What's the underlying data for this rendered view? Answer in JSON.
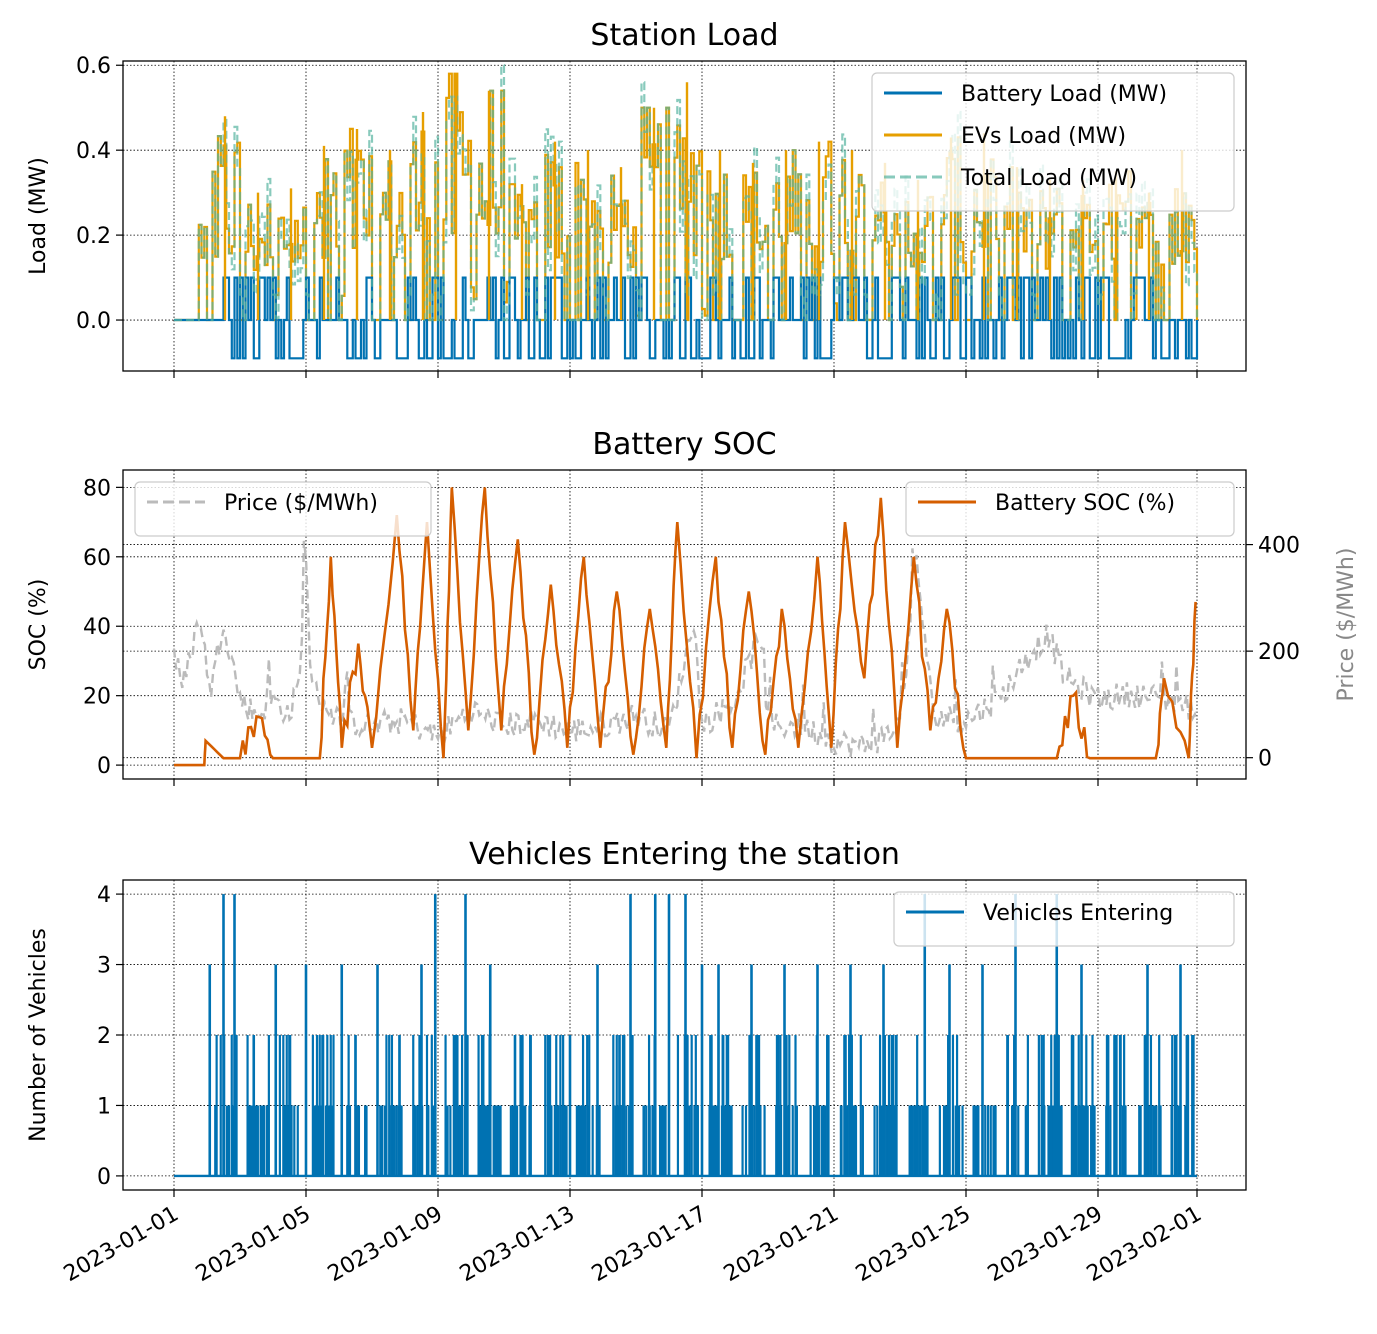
{
  "chart_data": [
    {
      "type": "line",
      "title": "Station Load",
      "ylabel": "Load (MW)",
      "ylim": [
        -0.12,
        0.61
      ],
      "yticks": [
        "0.0",
        "0.2",
        "0.4",
        "0.6"
      ],
      "grid": true,
      "legend": "top-right",
      "series": [
        {
          "name": "Battery Load (MW)",
          "color": "#0072B2",
          "style": "solid",
          "pattern": {
            "levels": [
              -0.09,
              0.0,
              0.1
            ],
            "sample_every_hours": 2
          }
        },
        {
          "name": "EVs Load (MW)",
          "color": "#E69F00",
          "style": "solid",
          "peaks": [
            {
              "x": "2023-01-02",
              "y": 0.48
            },
            {
              "x": "2023-01-03",
              "y": 0.3
            },
            {
              "x": "2023-01-04",
              "y": 0.31
            },
            {
              "x": "2023-01-05",
              "y": 0.41
            },
            {
              "x": "2023-01-06",
              "y": 0.45
            },
            {
              "x": "2023-01-07",
              "y": 0.4
            },
            {
              "x": "2023-01-08",
              "y": 0.49
            },
            {
              "x": "2023-01-09",
              "y": 0.58
            },
            {
              "x": "2023-01-10",
              "y": 0.54
            },
            {
              "x": "2023-01-11",
              "y": 0.32
            },
            {
              "x": "2023-01-12",
              "y": 0.42
            },
            {
              "x": "2023-01-13",
              "y": 0.4
            },
            {
              "x": "2023-01-14",
              "y": 0.36
            },
            {
              "x": "2023-01-15",
              "y": 0.5
            },
            {
              "x": "2023-01-16",
              "y": 0.56
            },
            {
              "x": "2023-01-17",
              "y": 0.4
            },
            {
              "x": "2023-01-18",
              "y": 0.37
            },
            {
              "x": "2023-01-19",
              "y": 0.4
            },
            {
              "x": "2023-01-20",
              "y": 0.42
            },
            {
              "x": "2023-01-21",
              "y": 0.4
            },
            {
              "x": "2023-01-22",
              "y": 0.37
            },
            {
              "x": "2023-01-23",
              "y": 0.33
            },
            {
              "x": "2023-01-24",
              "y": 0.43
            },
            {
              "x": "2023-01-25",
              "y": 0.44
            },
            {
              "x": "2023-01-26",
              "y": 0.36
            },
            {
              "x": "2023-01-27",
              "y": 0.33
            },
            {
              "x": "2023-01-28",
              "y": 0.33
            },
            {
              "x": "2023-01-29",
              "y": 0.35
            },
            {
              "x": "2023-01-30",
              "y": 0.3
            },
            {
              "x": "2023-01-31",
              "y": 0.4
            }
          ]
        },
        {
          "name": "Total Load (MW)",
          "color": "#56B4A0",
          "style": "dashed",
          "opacity": 0.7
        }
      ]
    },
    {
      "type": "line",
      "title": "Battery SOC",
      "ylabel": "SOC (%)",
      "ylim": [
        -4,
        85
      ],
      "yticks": [
        "0",
        "20",
        "40",
        "60",
        "80"
      ],
      "y2label": "Price ($/MWh)",
      "y2ticks": [
        "0",
        "200",
        "400"
      ],
      "y2lim": [
        -40,
        540
      ],
      "grid": true,
      "series": [
        {
          "name": "Price ($/MWh)",
          "axis": "right",
          "color": "#bbbbbb",
          "style": "dashed",
          "legend": "top-left",
          "points": [
            {
              "x": "2023-01-01T00:00",
              "y": 200
            },
            {
              "x": "2023-01-01T06:00",
              "y": 130
            },
            {
              "x": "2023-01-01T18:00",
              "y": 260
            },
            {
              "x": "2023-01-02T03:00",
              "y": 130
            },
            {
              "x": "2023-01-02T12:00",
              "y": 260
            },
            {
              "x": "2023-01-03T00:00",
              "y": 110
            },
            {
              "x": "2023-01-03T12:00",
              "y": 80
            },
            {
              "x": "2023-01-04T00:00",
              "y": 110
            },
            {
              "x": "2023-01-04T12:00",
              "y": 80
            },
            {
              "x": "2023-01-04T20:00",
              "y": 150
            },
            {
              "x": "2023-01-04T23:00",
              "y": 440
            },
            {
              "x": "2023-01-05T04:00",
              "y": 130
            },
            {
              "x": "2023-01-06T00:00",
              "y": 70
            },
            {
              "x": "2023-01-07T00:00",
              "y": 60
            },
            {
              "x": "2023-01-08T00:00",
              "y": 70
            },
            {
              "x": "2023-01-09T00:00",
              "y": 40
            },
            {
              "x": "2023-01-10T00:00",
              "y": 90
            },
            {
              "x": "2023-01-11T00:00",
              "y": 60
            },
            {
              "x": "2023-01-12T00:00",
              "y": 70
            },
            {
              "x": "2023-01-13T00:00",
              "y": 50
            },
            {
              "x": "2023-01-14T00:00",
              "y": 60
            },
            {
              "x": "2023-01-15T00:00",
              "y": 80
            },
            {
              "x": "2023-01-16T00:00",
              "y": 50
            },
            {
              "x": "2023-01-16T18:00",
              "y": 260
            },
            {
              "x": "2023-01-17T00:00",
              "y": 60
            },
            {
              "x": "2023-01-18T00:00",
              "y": 110
            },
            {
              "x": "2023-01-18T18:00",
              "y": 230
            },
            {
              "x": "2023-01-19T00:00",
              "y": 60
            },
            {
              "x": "2023-01-20T00:00",
              "y": 60
            },
            {
              "x": "2023-01-21T00:00",
              "y": 30
            },
            {
              "x": "2023-01-22T00:00",
              "y": 20
            },
            {
              "x": "2023-01-23T00:00",
              "y": 60
            },
            {
              "x": "2023-01-23T12:00",
              "y": 370
            },
            {
              "x": "2023-01-24T00:00",
              "y": 80
            },
            {
              "x": "2023-01-25T00:00",
              "y": 70
            },
            {
              "x": "2023-01-26T00:00",
              "y": 110
            },
            {
              "x": "2023-01-27T00:00",
              "y": 200
            },
            {
              "x": "2023-01-27T12:00",
              "y": 230
            },
            {
              "x": "2023-01-28T00:00",
              "y": 150
            },
            {
              "x": "2023-01-29T00:00",
              "y": 110
            },
            {
              "x": "2023-01-30T00:00",
              "y": 120
            },
            {
              "x": "2023-01-31T00:00",
              "y": 110
            },
            {
              "x": "2023-02-01T00:00",
              "y": 90
            }
          ]
        },
        {
          "name": "Battery SOC (%)",
          "axis": "left",
          "color": "#D55E00",
          "style": "solid",
          "legend": "top-right",
          "points": [
            {
              "x": "2023-01-01T00:00",
              "y": 0
            },
            {
              "x": "2023-01-01T22:00",
              "y": 0
            },
            {
              "x": "2023-01-01T23:00",
              "y": 7
            },
            {
              "x": "2023-01-02T12:00",
              "y": 2
            },
            {
              "x": "2023-01-03T00:00",
              "y": 2
            },
            {
              "x": "2023-01-03T12:00",
              "y": 14
            },
            {
              "x": "2023-01-04T00:00",
              "y": 2
            },
            {
              "x": "2023-01-04T12:00",
              "y": 2
            },
            {
              "x": "2023-01-05T00:00",
              "y": 2
            },
            {
              "x": "2023-01-05T10:00",
              "y": 2
            },
            {
              "x": "2023-01-05T18:00",
              "y": 60
            },
            {
              "x": "2023-01-06T02:00",
              "y": 5
            },
            {
              "x": "2023-01-06T14:00",
              "y": 35
            },
            {
              "x": "2023-01-07T00:00",
              "y": 5
            },
            {
              "x": "2023-01-07T18:00",
              "y": 72
            },
            {
              "x": "2023-01-08T06:00",
              "y": 10
            },
            {
              "x": "2023-01-08T16:00",
              "y": 70
            },
            {
              "x": "2023-01-09T04:00",
              "y": 2
            },
            {
              "x": "2023-01-09T10:00",
              "y": 80
            },
            {
              "x": "2023-01-09T22:00",
              "y": 10
            },
            {
              "x": "2023-01-10T10:00",
              "y": 80
            },
            {
              "x": "2023-01-10T22:00",
              "y": 10
            },
            {
              "x": "2023-01-11T10:00",
              "y": 65
            },
            {
              "x": "2023-01-11T22:00",
              "y": 3
            },
            {
              "x": "2023-01-12T10:00",
              "y": 52
            },
            {
              "x": "2023-01-12T22:00",
              "y": 5
            },
            {
              "x": "2023-01-13T10:00",
              "y": 60
            },
            {
              "x": "2023-01-13T22:00",
              "y": 5
            },
            {
              "x": "2023-01-14T10:00",
              "y": 50
            },
            {
              "x": "2023-01-14T22:00",
              "y": 3
            },
            {
              "x": "2023-01-15T10:00",
              "y": 45
            },
            {
              "x": "2023-01-15T22:00",
              "y": 5
            },
            {
              "x": "2023-01-16T06:00",
              "y": 70
            },
            {
              "x": "2023-01-16T20:00",
              "y": 2
            },
            {
              "x": "2023-01-17T10:00",
              "y": 60
            },
            {
              "x": "2023-01-17T22:00",
              "y": 5
            },
            {
              "x": "2023-01-18T10:00",
              "y": 50
            },
            {
              "x": "2023-01-18T22:00",
              "y": 3
            },
            {
              "x": "2023-01-19T10:00",
              "y": 45
            },
            {
              "x": "2023-01-19T22:00",
              "y": 5
            },
            {
              "x": "2023-01-20T12:00",
              "y": 60
            },
            {
              "x": "2023-01-20T22:00",
              "y": 5
            },
            {
              "x": "2023-01-21T08:00",
              "y": 70
            },
            {
              "x": "2023-01-21T22:00",
              "y": 25
            },
            {
              "x": "2023-01-22T10:00",
              "y": 77
            },
            {
              "x": "2023-01-22T22:00",
              "y": 5
            },
            {
              "x": "2023-01-23T10:00",
              "y": 60
            },
            {
              "x": "2023-01-23T22:00",
              "y": 10
            },
            {
              "x": "2023-01-24T10:00",
              "y": 45
            },
            {
              "x": "2023-01-24T22:00",
              "y": 5
            },
            {
              "x": "2023-01-25T00:00",
              "y": 2
            },
            {
              "x": "2023-01-27T18:00",
              "y": 2
            },
            {
              "x": "2023-01-28T06:00",
              "y": 20
            },
            {
              "x": "2023-01-28T18:00",
              "y": 2
            },
            {
              "x": "2023-01-30T18:00",
              "y": 2
            },
            {
              "x": "2023-01-31T00:00",
              "y": 25
            },
            {
              "x": "2023-01-31T18:00",
              "y": 2
            },
            {
              "x": "2023-01-31T23:00",
              "y": 47
            }
          ]
        }
      ]
    },
    {
      "type": "line",
      "title": "Vehicles Entering the station",
      "ylabel": "Number of Vehicles",
      "ylim": [
        -0.2,
        4.2
      ],
      "yticks": [
        "0",
        "1",
        "2",
        "3",
        "4"
      ],
      "grid": true,
      "legend": "top-right",
      "series": [
        {
          "name": "Vehicles Entering",
          "color": "#0072B2",
          "style": "solid",
          "spikes": [
            {
              "x": "2023-01-02T02:00",
              "y": 3
            },
            {
              "x": "2023-01-02T12:00",
              "y": 4
            },
            {
              "x": "2023-01-02T20:00",
              "y": 4
            },
            {
              "x": "2023-01-03T10:00",
              "y": 2
            },
            {
              "x": "2023-01-04T02:00",
              "y": 3
            },
            {
              "x": "2023-01-04T12:00",
              "y": 2
            },
            {
              "x": "2023-01-05T00:00",
              "y": 3
            },
            {
              "x": "2023-01-05T12:00",
              "y": 2
            },
            {
              "x": "2023-01-06T02:00",
              "y": 3
            },
            {
              "x": "2023-01-06T12:00",
              "y": 2
            },
            {
              "x": "2023-01-07T04:00",
              "y": 3
            },
            {
              "x": "2023-01-07T20:00",
              "y": 2
            },
            {
              "x": "2023-01-08T12:00",
              "y": 3
            },
            {
              "x": "2023-01-08T22:00",
              "y": 4
            },
            {
              "x": "2023-01-09T14:00",
              "y": 2
            },
            {
              "x": "2023-01-09T20:00",
              "y": 4
            },
            {
              "x": "2023-01-10T14:00",
              "y": 3
            },
            {
              "x": "2023-01-11T08:00",
              "y": 2
            },
            {
              "x": "2023-01-12T08:00",
              "y": 2
            },
            {
              "x": "2023-01-13T00:00",
              "y": 2
            },
            {
              "x": "2023-01-13T20:00",
              "y": 3
            },
            {
              "x": "2023-01-14T12:00",
              "y": 2
            },
            {
              "x": "2023-01-14T20:00",
              "y": 4
            },
            {
              "x": "2023-01-15T14:00",
              "y": 4
            },
            {
              "x": "2023-01-16T00:00",
              "y": 4
            },
            {
              "x": "2023-01-16T12:00",
              "y": 4
            },
            {
              "x": "2023-01-17T00:00",
              "y": 3
            },
            {
              "x": "2023-01-17T12:00",
              "y": 3
            },
            {
              "x": "2023-01-18T12:00",
              "y": 3
            },
            {
              "x": "2023-01-19T12:00",
              "y": 3
            },
            {
              "x": "2023-01-20T12:00",
              "y": 3
            },
            {
              "x": "2023-01-21T12:00",
              "y": 3
            },
            {
              "x": "2023-01-22T12:00",
              "y": 3
            },
            {
              "x": "2023-01-23T18:00",
              "y": 4
            },
            {
              "x": "2023-01-24T12:00",
              "y": 3
            },
            {
              "x": "2023-01-25T12:00",
              "y": 3
            },
            {
              "x": "2023-01-26T12:00",
              "y": 4
            },
            {
              "x": "2023-01-27T18:00",
              "y": 4
            },
            {
              "x": "2023-01-28T12:00",
              "y": 3
            },
            {
              "x": "2023-01-29T12:00",
              "y": 2
            },
            {
              "x": "2023-01-30T12:00",
              "y": 3
            },
            {
              "x": "2023-01-31T12:00",
              "y": 3
            }
          ]
        }
      ]
    }
  ],
  "x_axis": {
    "range": [
      "2023-01-01",
      "2023-02-01"
    ],
    "tick_labels": [
      "2023-01-01",
      "2023-01-05",
      "2023-01-09",
      "2023-01-13",
      "2023-01-17",
      "2023-01-21",
      "2023-01-25",
      "2023-01-29",
      "2023-02-01"
    ]
  }
}
